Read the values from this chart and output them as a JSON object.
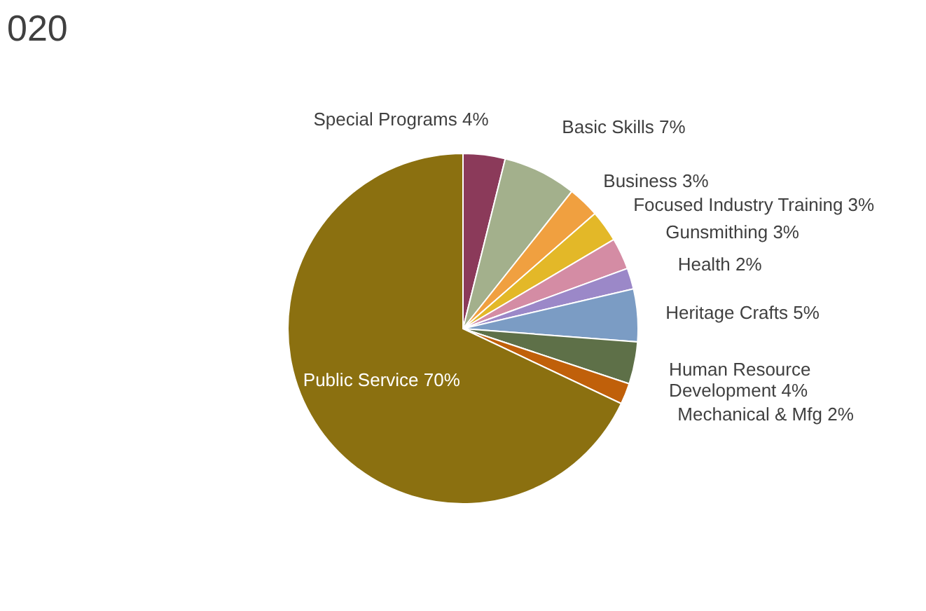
{
  "chart_data": {
    "type": "pie",
    "title": "020",
    "categories": [
      "Special Programs",
      "Basic Skills",
      "Business",
      "Focused Industry Training",
      "Gunsmithing",
      "Health",
      "Heritage Crafts",
      "Human Resource Development",
      "Mechanical & Mfg",
      "Public Service"
    ],
    "values": [
      4,
      7,
      3,
      3,
      3,
      2,
      5,
      4,
      2,
      70
    ],
    "value_labels": [
      "4%",
      "7%",
      "3%",
      "3%",
      "3%",
      "2%",
      "5%",
      "4%",
      "2%",
      "70%"
    ],
    "colors": [
      "#8b3a5a",
      "#a3b08c",
      "#f0a040",
      "#e3b828",
      "#d48ca4",
      "#9b88c8",
      "#7b9cc4",
      "#5e7048",
      "#c0600a",
      "#8b7010"
    ],
    "legend": false
  }
}
